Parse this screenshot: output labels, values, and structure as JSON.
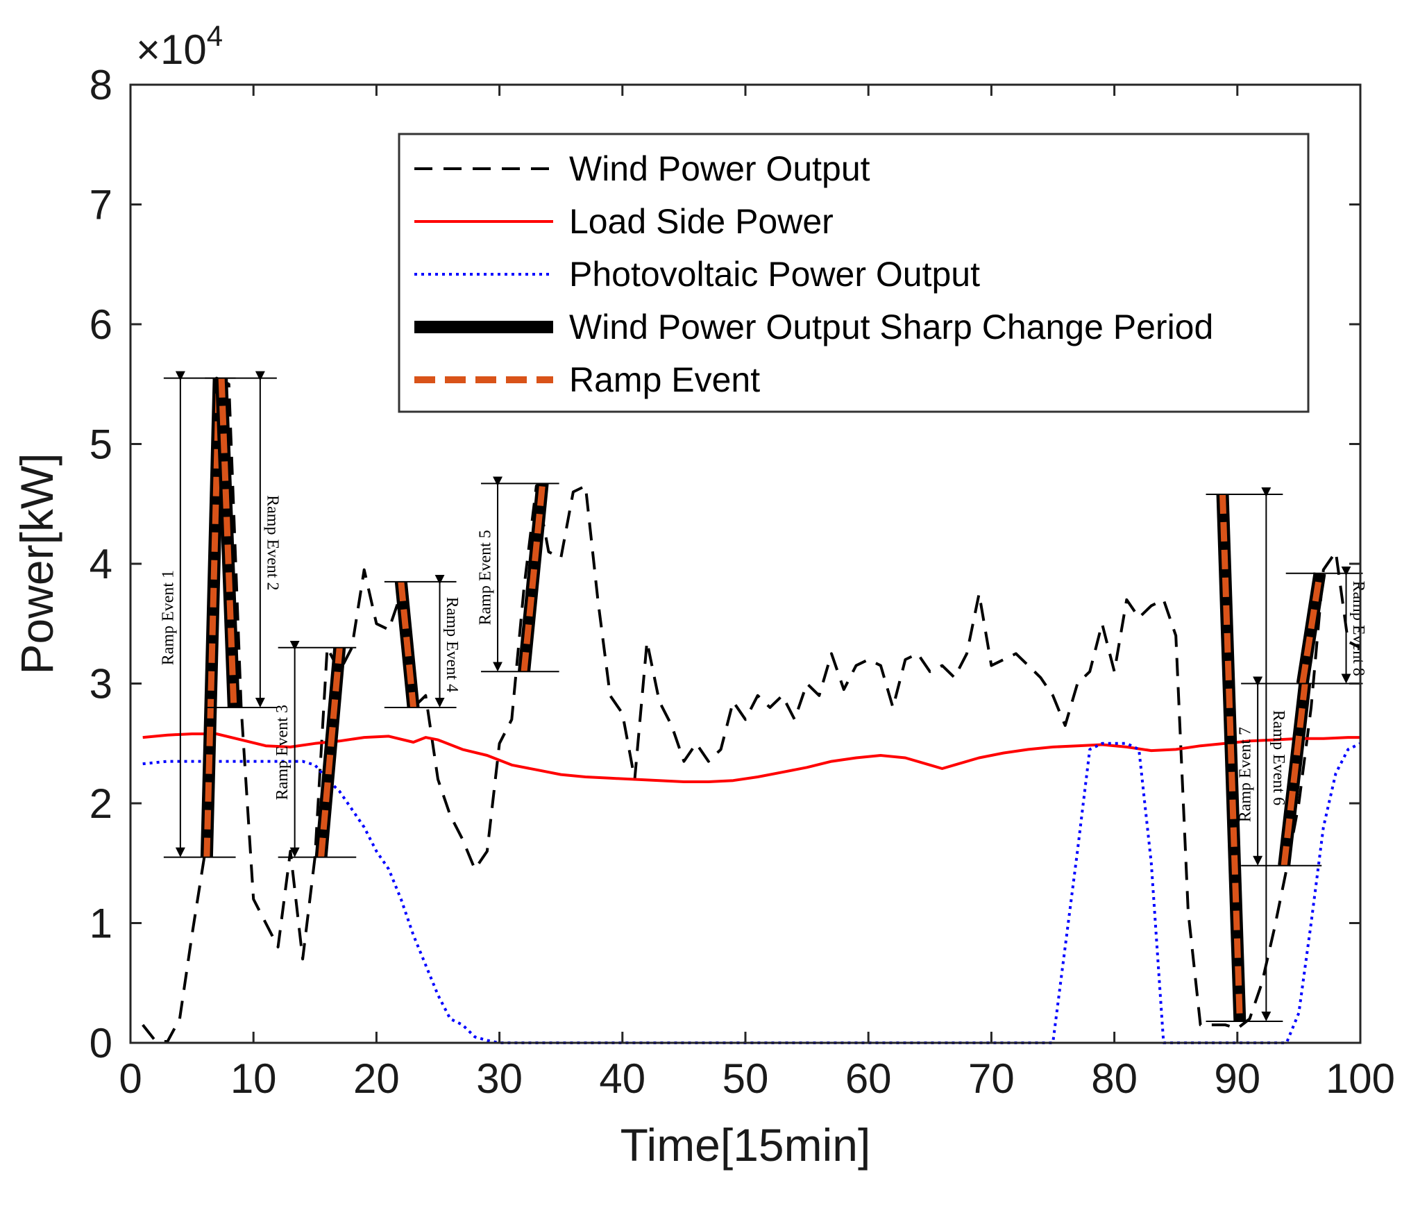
{
  "chart_data": {
    "type": "line",
    "xlabel": "Time[15min]",
    "ylabel": "Power[kW]",
    "y_exponent_label": {
      "prefix": "×10",
      "exponent": "4"
    },
    "xlim": [
      0,
      100
    ],
    "ylim": [
      0,
      80000
    ],
    "x_ticks": [
      0,
      10,
      20,
      30,
      40,
      50,
      60,
      70,
      80,
      90,
      100
    ],
    "x_tick_labels": [
      "0",
      "10",
      "20",
      "30",
      "40",
      "50",
      "60",
      "70",
      "80",
      "90",
      "100"
    ],
    "y_ticks": [
      0,
      10000,
      20000,
      30000,
      40000,
      50000,
      60000,
      70000,
      80000
    ],
    "y_tick_labels": [
      "0",
      "1",
      "2",
      "3",
      "4",
      "5",
      "6",
      "7",
      "8"
    ],
    "grid": false,
    "legend_position": "top-right",
    "legend": [
      {
        "label": "Wind Power Output",
        "color": "#000000",
        "style": "dashed"
      },
      {
        "label": "Load Side Power",
        "color": "#ff0000",
        "style": "solid"
      },
      {
        "label": "Photovoltaic Power Output",
        "color": "#0000ff",
        "style": "dotted"
      },
      {
        "label": "Wind Power Output Sharp Change Period",
        "color": "#000000",
        "style": "thick"
      },
      {
        "label": "Ramp Event",
        "color": "#d95319",
        "style": "thick-dashed"
      }
    ],
    "series": [
      {
        "name": "Wind Power Output",
        "color": "#000000",
        "style": "dashed",
        "x": [
          1,
          2,
          3,
          4,
          5,
          6,
          7,
          8,
          9,
          10,
          11,
          12,
          13,
          14,
          15,
          16,
          17,
          18,
          19,
          20,
          21,
          22,
          23,
          24,
          25,
          26,
          27,
          28,
          29,
          30,
          31,
          32,
          33,
          34,
          35,
          36,
          37,
          38,
          39,
          40,
          41,
          42,
          43,
          44,
          45,
          46,
          47,
          48,
          49,
          50,
          51,
          52,
          53,
          54,
          55,
          56,
          57,
          58,
          59,
          60,
          61,
          62,
          63,
          64,
          65,
          66,
          67,
          68,
          69,
          70,
          71,
          72,
          73,
          74,
          75,
          76,
          77,
          78,
          79,
          80,
          81,
          82,
          83,
          84,
          85,
          86,
          87,
          88,
          89,
          90,
          91,
          92,
          93,
          94,
          95,
          96,
          97,
          98,
          99,
          100
        ],
        "values": [
          1500,
          200,
          100,
          2000,
          9000,
          15500,
          55500,
          55000,
          28000,
          12000,
          10000,
          8000,
          16000,
          7000,
          15500,
          33000,
          31000,
          33000,
          39500,
          35000,
          34500,
          37500,
          28000,
          29000,
          22000,
          19000,
          17000,
          14500,
          16000,
          25000,
          27000,
          38000,
          46500,
          41000,
          40500,
          46000,
          46500,
          37000,
          29000,
          27500,
          22000,
          33500,
          28500,
          26500,
          23500,
          25000,
          23500,
          24500,
          28500,
          27000,
          29000,
          28000,
          29000,
          27000,
          30000,
          29000,
          32500,
          29500,
          31500,
          32000,
          31500,
          28000,
          32000,
          32500,
          31000,
          31500,
          30500,
          32500,
          37500,
          31500,
          32000,
          32500,
          31500,
          30500,
          29000,
          26500,
          30000,
          31000,
          35000,
          31000,
          37000,
          35500,
          36500,
          37000,
          34000,
          11000,
          1500,
          1500,
          1500,
          1200,
          2000,
          5000,
          9500,
          14500,
          20000,
          28000,
          39500,
          41000,
          33500,
          33000
        ],
        "annotations_note": ""
      },
      {
        "name": "Load Side Power",
        "color": "#ff0000",
        "style": "solid",
        "x": [
          1,
          3,
          5,
          7,
          9,
          11,
          13,
          15,
          17,
          19,
          21,
          23,
          24,
          25,
          27,
          29,
          31,
          33,
          35,
          37,
          39,
          41,
          43,
          45,
          47,
          49,
          51,
          53,
          55,
          57,
          59,
          61,
          63,
          65,
          66,
          67,
          69,
          71,
          73,
          75,
          77,
          79,
          81,
          83,
          85,
          87,
          89,
          91,
          93,
          95,
          97,
          99,
          100
        ],
        "values": [
          25500,
          25700,
          25800,
          25800,
          25300,
          24800,
          24700,
          25000,
          25200,
          25500,
          25600,
          25100,
          25500,
          25300,
          24500,
          24000,
          23200,
          22800,
          22400,
          22200,
          22100,
          22000,
          21900,
          21800,
          21800,
          21900,
          22200,
          22600,
          23000,
          23500,
          23800,
          24000,
          23800,
          23200,
          22900,
          23200,
          23800,
          24200,
          24500,
          24700,
          24800,
          24900,
          24700,
          24400,
          24500,
          24800,
          25000,
          25200,
          25300,
          25400,
          25400,
          25500,
          25500
        ]
      },
      {
        "name": "Photovoltaic Power Output",
        "color": "#0000ff",
        "style": "dotted",
        "x": [
          1,
          3,
          5,
          7,
          9,
          11,
          13,
          14,
          15,
          16,
          17,
          18,
          19,
          20,
          21,
          22,
          23,
          24,
          25,
          26,
          27,
          28,
          29,
          30,
          40,
          50,
          60,
          70,
          75,
          76,
          77,
          78,
          79,
          80,
          81,
          82,
          83,
          84,
          85,
          90,
          94,
          95,
          96,
          97,
          98,
          99,
          100
        ],
        "values": [
          23300,
          23500,
          23500,
          23500,
          23500,
          23500,
          23500,
          23500,
          23200,
          22000,
          21000,
          19500,
          18000,
          16000,
          14500,
          12000,
          9000,
          6500,
          4000,
          2000,
          1500,
          500,
          200,
          0,
          0,
          0,
          0,
          0,
          0,
          8000,
          16000,
          24500,
          25000,
          25000,
          25000,
          24500,
          15000,
          0,
          0,
          0,
          0,
          2500,
          10000,
          18000,
          22500,
          24500,
          25000
        ]
      }
    ],
    "ramp_events": [
      {
        "label": "Ramp Event 1",
        "x_start": 6.2,
        "x_end": 7.2,
        "y_start": 15500,
        "y_end": 55500
      },
      {
        "label": "Ramp Event 2",
        "x_start": 7.4,
        "x_end": 8.4,
        "y_start": 55500,
        "y_end": 28000
      },
      {
        "label": "Ramp Event 3",
        "x_start": 15.5,
        "x_end": 17.0,
        "y_start": 15500,
        "y_end": 33000
      },
      {
        "label": "Ramp Event 4",
        "x_start": 22.0,
        "x_end": 23.0,
        "y_start": 38500,
        "y_end": 28000
      },
      {
        "label": "Ramp Event 5",
        "x_start": 32.0,
        "x_end": 33.5,
        "y_start": 31000,
        "y_end": 46700
      },
      {
        "label": "Ramp Event 6",
        "x_start": 88.8,
        "x_end": 90.2,
        "y_start": 45800,
        "y_end": 1800
      },
      {
        "label": "Ramp Event 7",
        "x_start": 93.8,
        "x_end": 95.5,
        "y_start": 14800,
        "y_end": 30000
      },
      {
        "label": "Ramp Event 8",
        "x_start": 95.3,
        "x_end": 96.7,
        "y_start": 30000,
        "y_end": 39200
      }
    ]
  }
}
